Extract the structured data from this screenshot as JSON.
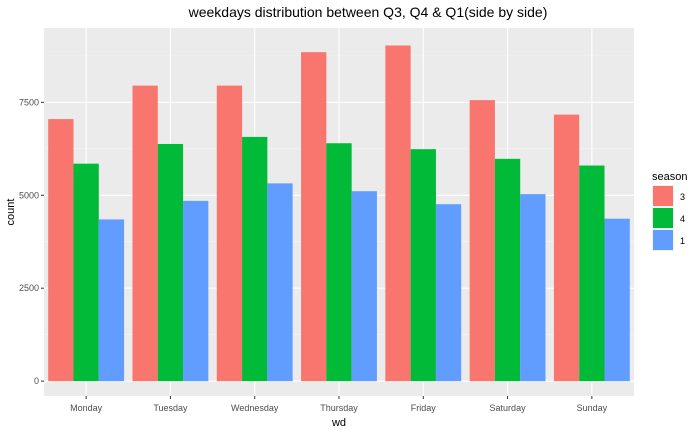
{
  "chart_data": {
    "type": "bar",
    "title": "weekdays distribution between Q3, Q4 & Q1(side by side)",
    "xlabel": "wd",
    "ylabel": "count",
    "categories": [
      "Monday",
      "Tuesday",
      "Wednesday",
      "Thursday",
      "Friday",
      "Saturday",
      "Sunday"
    ],
    "series": [
      {
        "name": "3",
        "color": "#F8766D",
        "values": [
          7050,
          7950,
          7950,
          8850,
          9030,
          7560,
          7170
        ]
      },
      {
        "name": "4",
        "color": "#00BA38",
        "values": [
          5850,
          6380,
          6570,
          6400,
          6240,
          5980,
          5800
        ]
      },
      {
        "name": "1",
        "color": "#619CFF",
        "values": [
          4350,
          4850,
          5320,
          5110,
          4760,
          5030,
          4370
        ]
      }
    ],
    "ylim": [
      -400,
      9500
    ],
    "yticks": [
      0,
      2500,
      5000,
      7500
    ],
    "ytick_labels": [
      "0",
      "2500",
      "5000",
      "7500"
    ],
    "legend": {
      "title": "season",
      "position": "right"
    },
    "grid": true
  }
}
